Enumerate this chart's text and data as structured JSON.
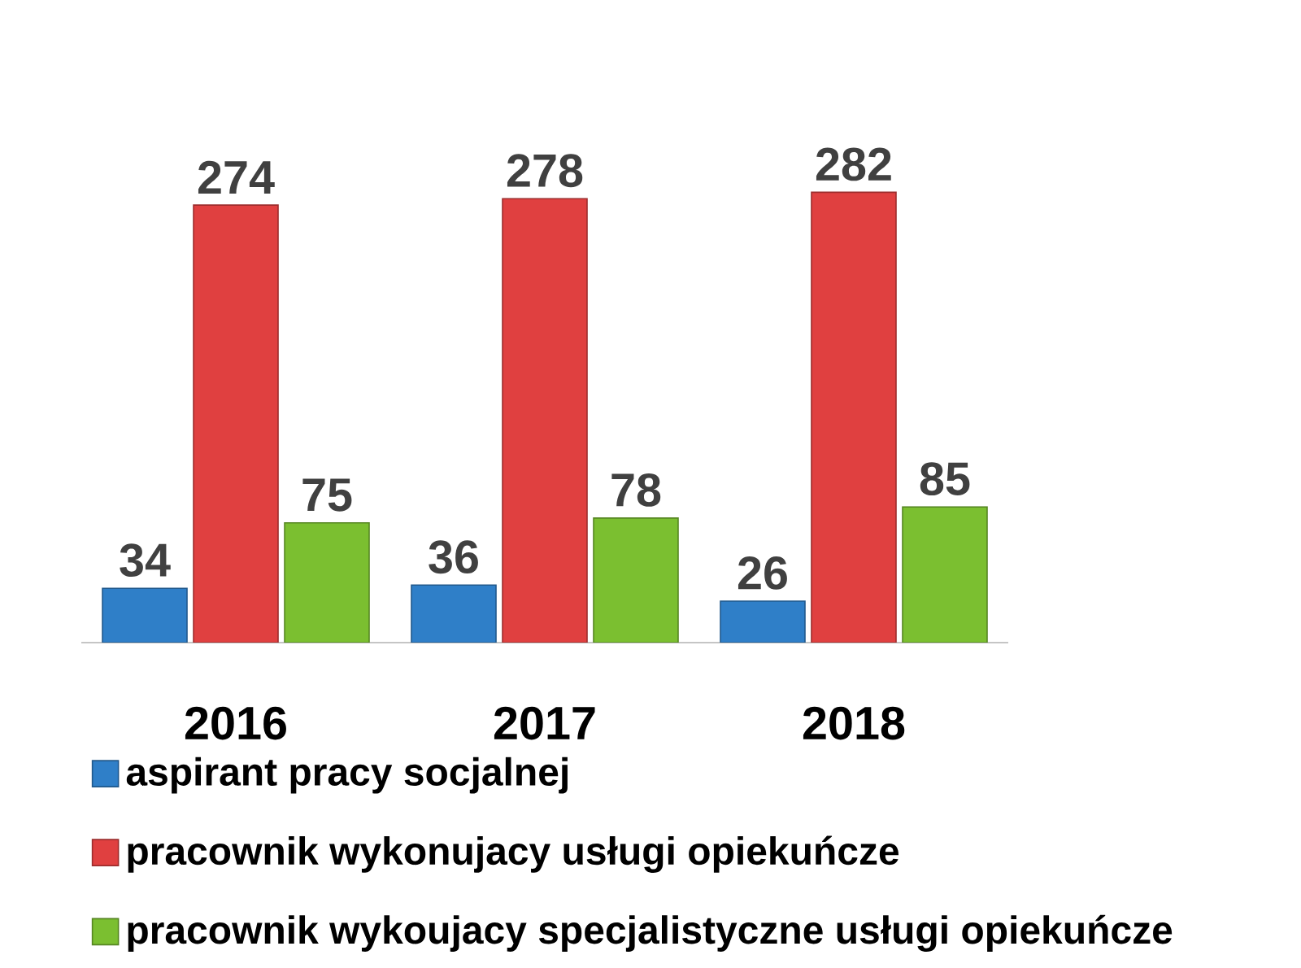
{
  "chart_data": {
    "type": "bar",
    "categories": [
      "2016",
      "2017",
      "2018"
    ],
    "series": [
      {
        "name": "aspirant pracy socjalnej",
        "color": "#2f7fc8",
        "values": [
          34,
          36,
          26
        ]
      },
      {
        "name": "pracownik wykonujacy usługi opiekuńcze",
        "color": "#e04040",
        "values": [
          274,
          278,
          282
        ]
      },
      {
        "name": "pracownik wykoujacy specjalistyczne usługi opiekuńcze",
        "color": "#7bbf30",
        "values": [
          75,
          78,
          85
        ]
      }
    ],
    "data_labels": true,
    "legend": "bottom",
    "tick_labels": "x",
    "grid": false
  }
}
